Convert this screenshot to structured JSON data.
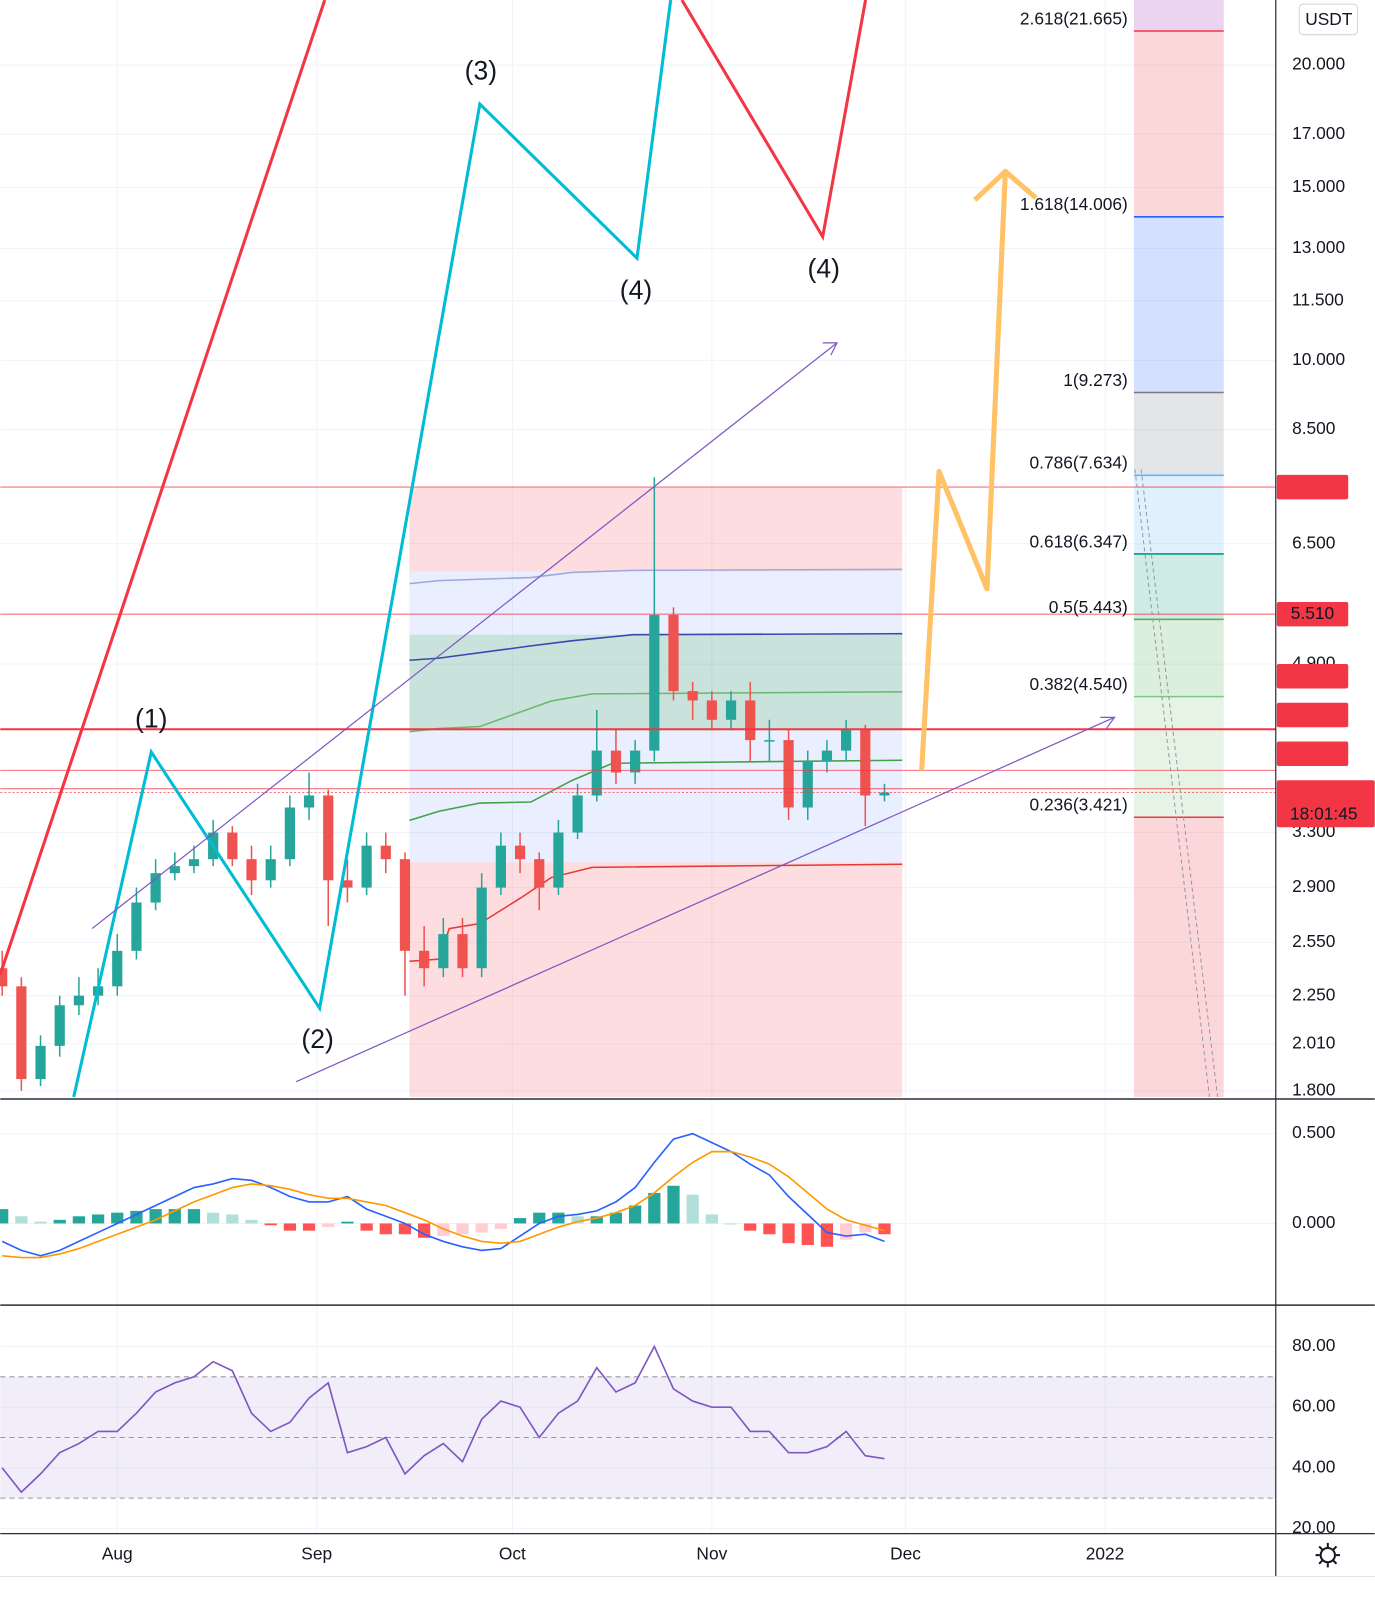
{
  "chart_data": [
    {
      "type": "candlestick",
      "currency": "USDT",
      "log": true,
      "grid": true,
      "xlim": [
        -0.1,
        66.4
      ],
      "xticks": [
        {
          "value": 6,
          "label": "Aug"
        },
        {
          "value": 16.4,
          "label": "Sep"
        },
        {
          "value": 26.6,
          "label": "Oct"
        },
        {
          "value": 37,
          "label": "Nov"
        },
        {
          "value": 47.1,
          "label": "Dec"
        },
        {
          "value": 57.5,
          "label": "2022"
        }
      ],
      "ylim": [
        1.774,
        23.3
      ],
      "yticks": [
        {
          "value": 1.8,
          "label": "1.800"
        },
        {
          "value": 2.01,
          "label": "2.010"
        },
        {
          "value": 2.25,
          "label": "2.250"
        },
        {
          "value": 2.55,
          "label": "2.550"
        },
        {
          "value": 2.9,
          "label": "2.900"
        },
        {
          "value": 3.3,
          "label": "3.300"
        },
        {
          "value": 4.9,
          "label": "4.900"
        },
        {
          "value": 6.5,
          "label": "6.500"
        },
        {
          "value": 8.5,
          "label": "8.500"
        },
        {
          "value": 10,
          "label": "10.000"
        },
        {
          "value": 11.5,
          "label": "11.500"
        },
        {
          "value": 13,
          "label": "13.000"
        },
        {
          "value": 15,
          "label": "15.000"
        },
        {
          "value": 17,
          "label": "17.000"
        },
        {
          "value": 20,
          "label": "20.000"
        }
      ],
      "up_color": "#26a69a",
      "down_color": "#ef5350",
      "open": [
        2.4,
        2.3,
        1.85,
        2.0,
        2.2,
        2.25,
        2.3,
        2.5,
        2.8,
        3.0,
        3.05,
        3.1,
        3.3,
        3.1,
        2.95,
        3.1,
        3.5,
        3.6,
        2.95,
        2.9,
        3.2,
        3.1,
        2.5,
        2.4,
        2.6,
        2.4,
        2.9,
        3.2,
        3.1,
        2.9,
        3.3,
        3.6,
        4.0,
        3.8,
        4.0,
        5.5,
        4.6,
        4.5,
        4.3,
        4.5,
        4.1,
        4.1,
        3.5,
        3.9,
        4.0,
        4.2,
        3.6
      ],
      "high": [
        2.5,
        2.35,
        2.05,
        2.25,
        2.35,
        2.4,
        2.6,
        2.9,
        3.1,
        3.15,
        3.2,
        3.4,
        3.35,
        3.2,
        3.2,
        3.6,
        3.8,
        3.65,
        3.1,
        3.3,
        3.3,
        3.15,
        2.65,
        2.7,
        2.7,
        3.0,
        3.3,
        3.3,
        3.15,
        3.4,
        3.7,
        4.4,
        4.2,
        4.1,
        7.6,
        5.6,
        4.7,
        4.6,
        4.6,
        4.7,
        4.3,
        4.2,
        4.0,
        4.1,
        4.3,
        4.25,
        3.7
      ],
      "low": [
        2.25,
        1.8,
        1.82,
        1.95,
        2.15,
        2.2,
        2.25,
        2.45,
        2.75,
        2.95,
        3.0,
        3.05,
        3.05,
        2.85,
        2.9,
        3.05,
        3.4,
        2.65,
        2.8,
        2.85,
        3.0,
        2.25,
        2.3,
        2.35,
        2.35,
        2.35,
        2.85,
        3.0,
        2.75,
        2.85,
        3.25,
        3.55,
        3.7,
        3.7,
        3.9,
        4.5,
        4.3,
        4.2,
        4.2,
        3.9,
        3.9,
        3.4,
        3.4,
        3.8,
        3.9,
        3.35,
        3.55
      ],
      "close": [
        2.3,
        1.85,
        2.0,
        2.2,
        2.25,
        2.3,
        2.5,
        2.8,
        3.0,
        3.05,
        3.1,
        3.3,
        3.1,
        2.95,
        3.1,
        3.5,
        3.6,
        2.95,
        2.9,
        3.2,
        3.1,
        2.5,
        2.4,
        2.6,
        2.4,
        2.9,
        3.2,
        3.1,
        2.9,
        3.3,
        3.6,
        4.0,
        3.8,
        4.0,
        5.5,
        4.6,
        4.5,
        4.3,
        4.5,
        4.1,
        4.1,
        3.5,
        3.9,
        4.0,
        4.2,
        3.6,
        3.625
      ],
      "fib_levels": [
        {
          "label": "2.618(21.665)",
          "price": 21.665,
          "color": "#f23645",
          "zone": "rgba(242,54,69,0.2)"
        },
        {
          "label": "1.618(14.006)",
          "price": 14.006,
          "color": "#2962ff",
          "zone": "rgba(41,98,255,0.2)"
        },
        {
          "label": "1(9.273)",
          "price": 9.273,
          "color": "#787b86",
          "zone": "rgba(120,123,134,0.2)"
        },
        {
          "label": "0.786(7.634)",
          "price": 7.634,
          "color": "#64b5f6",
          "zone": "rgba(100,181,246,0.2)"
        },
        {
          "label": "0.618(6.347)",
          "price": 6.347,
          "color": "#089981",
          "zone": "rgba(8,153,129,0.2)"
        },
        {
          "label": "0.5(5.443)",
          "price": 5.443,
          "color": "#4caf50",
          "zone": "rgba(76,175,80,0.2)"
        },
        {
          "label": "0.382(4.540)",
          "price": 4.54,
          "color": "#81c784",
          "zone": "rgba(129,199,132,0.2)"
        },
        {
          "label": "0.236(3.421)",
          "price": 3.421,
          "color": "#f23645",
          "zone": "rgba(242,54,69,0.2)"
        }
      ],
      "top_zone": "rgba(156,39,176,0.2)",
      "price_lines": [
        {
          "value": 7.426,
          "color": "#f23645"
        },
        {
          "value": 5.51,
          "label": "5.510",
          "color": "#f23645"
        },
        {
          "value": 4.206,
          "color": "#f23645"
        },
        {
          "value": 3.819,
          "color": "#f23645"
        },
        {
          "value": 3.658,
          "color": "#f23645"
        },
        {
          "value": 3.625,
          "color": "#f23645"
        }
      ],
      "countdown": "18:01:45",
      "wave_labels": [
        {
          "text": "(1)",
          "color": "#00bcd4"
        },
        {
          "text": "(2)",
          "color": "#00bcd4"
        },
        {
          "text": "(3)",
          "color": "#00bcd4"
        },
        {
          "text": "(4)",
          "color": "#00bcd4"
        },
        {
          "text": "(4)",
          "color": "#f23645"
        }
      ]
    },
    {
      "type": "macd",
      "ylim": [
        -0.449,
        0.6875
      ],
      "yticks": [
        {
          "value": 0,
          "label": "0.000"
        },
        {
          "value": 0.5,
          "label": "0.500"
        }
      ],
      "series": [
        {
          "color": "#2962ff",
          "values": [
            -0.1,
            -0.15,
            -0.18,
            -0.15,
            -0.1,
            -0.05,
            0.0,
            0.05,
            0.1,
            0.15,
            0.2,
            0.22,
            0.25,
            0.24,
            0.2,
            0.15,
            0.12,
            0.12,
            0.15,
            0.08,
            0.04,
            0.0,
            -0.06,
            -0.1,
            -0.13,
            -0.15,
            -0.14,
            -0.07,
            0.0,
            0.04,
            0.05,
            0.07,
            0.12,
            0.2,
            0.34,
            0.47,
            0.5,
            0.45,
            0.4,
            0.33,
            0.27,
            0.15,
            0.05,
            -0.05,
            -0.07,
            -0.06,
            -0.1
          ]
        },
        {
          "color": "#ff9800",
          "values": [
            -0.18,
            -0.19,
            -0.19,
            -0.17,
            -0.14,
            -0.1,
            -0.06,
            -0.02,
            0.02,
            0.07,
            0.12,
            0.16,
            0.2,
            0.22,
            0.21,
            0.19,
            0.16,
            0.14,
            0.14,
            0.12,
            0.1,
            0.06,
            0.02,
            -0.03,
            -0.07,
            -0.1,
            -0.11,
            -0.1,
            -0.06,
            -0.02,
            0.01,
            0.03,
            0.06,
            0.1,
            0.17,
            0.26,
            0.34,
            0.4,
            0.4,
            0.37,
            0.33,
            0.26,
            0.17,
            0.08,
            0.02,
            -0.01,
            -0.04
          ]
        }
      ],
      "histogram": [
        0.08,
        0.04,
        0.01,
        0.02,
        0.04,
        0.05,
        0.06,
        0.07,
        0.08,
        0.08,
        0.08,
        0.06,
        0.05,
        0.02,
        -0.01,
        -0.04,
        -0.04,
        -0.02,
        0.01,
        -0.04,
        -0.06,
        -0.06,
        -0.08,
        -0.07,
        -0.06,
        -0.05,
        -0.03,
        0.03,
        0.06,
        0.06,
        0.04,
        0.04,
        0.06,
        0.1,
        0.17,
        0.21,
        0.16,
        0.05,
        0.0,
        -0.04,
        -0.06,
        -0.11,
        -0.12,
        -0.13,
        -0.09,
        -0.05,
        -0.06
      ]
    },
    {
      "type": "rsi",
      "ylim": [
        18.3,
        93.3
      ],
      "color": "#7e57c2",
      "yticks": [
        {
          "value": 20,
          "label": "20.00"
        },
        {
          "value": 40,
          "label": "40.00"
        },
        {
          "value": 60,
          "label": "60.00"
        },
        {
          "value": 80,
          "label": "80.00"
        }
      ],
      "levels": [
        70,
        50,
        30
      ],
      "values": [
        40,
        32,
        38,
        45,
        48,
        52,
        52,
        58,
        65,
        68,
        70,
        75,
        72,
        58,
        52,
        55,
        63,
        68,
        45,
        47,
        50,
        38,
        44,
        48,
        42,
        56,
        62,
        60,
        50,
        58,
        62,
        73,
        65,
        68,
        80,
        66,
        62,
        60,
        60,
        52,
        52,
        45,
        45,
        47,
        52,
        44,
        43
      ]
    }
  ]
}
